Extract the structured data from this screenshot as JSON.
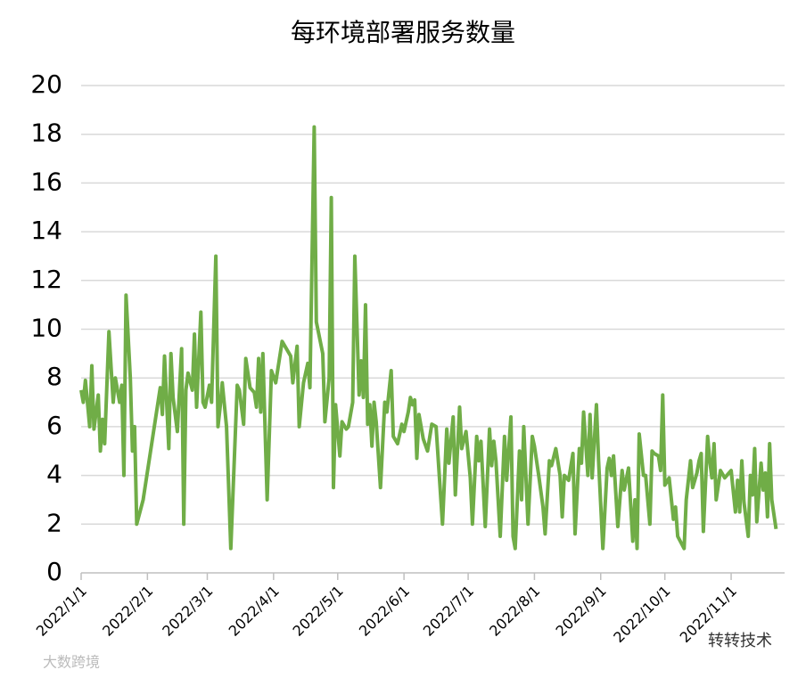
{
  "chart_data": {
    "type": "line",
    "title": "每环境部署服务数量",
    "color": "#70ad47",
    "grid": true,
    "xlim": [
      "2022/1/1",
      "2022/11/26"
    ],
    "xticks": [
      "2022/1/1",
      "2022/2/1",
      "2022/3/1",
      "2022/4/1",
      "2022/5/1",
      "2022/6/1",
      "2022/7/1",
      "2022/8/1",
      "2022/9/1",
      "2022/10/1",
      "2022/11/1"
    ],
    "ylim": [
      0,
      20
    ],
    "yticks": [
      0,
      2,
      4,
      6,
      8,
      10,
      12,
      14,
      16,
      18,
      20
    ],
    "x": [
      "2022/1/1",
      "2022/1/2",
      "2022/1/3",
      "2022/1/5",
      "2022/1/6",
      "2022/1/7",
      "2022/1/9",
      "2022/1/10",
      "2022/1/11",
      "2022/1/12",
      "2022/1/14",
      "2022/1/16",
      "2022/1/17",
      "2022/1/19",
      "2022/1/20",
      "2022/1/21",
      "2022/1/22",
      "2022/1/24",
      "2022/1/25",
      "2022/1/26",
      "2022/1/27",
      "2022/1/30",
      "2022/2/7",
      "2022/2/8",
      "2022/2/9",
      "2022/2/11",
      "2022/2/12",
      "2022/2/13",
      "2022/2/15",
      "2022/2/17",
      "2022/2/18",
      "2022/2/19",
      "2022/2/20",
      "2022/2/22",
      "2022/2/23",
      "2022/2/24",
      "2022/2/26",
      "2022/2/27",
      "2022/2/28",
      "2022/3/2",
      "2022/3/3",
      "2022/3/5",
      "2022/3/6",
      "2022/3/7",
      "2022/3/8",
      "2022/3/10",
      "2022/3/12",
      "2022/3/15",
      "2022/3/16",
      "2022/3/18",
      "2022/3/19",
      "2022/3/21",
      "2022/3/23",
      "2022/3/24",
      "2022/3/25",
      "2022/3/26",
      "2022/3/27",
      "2022/3/29",
      "2022/3/31",
      "2022/4/2",
      "2022/4/5",
      "2022/4/9",
      "2022/4/10",
      "2022/4/12",
      "2022/4/13",
      "2022/4/15",
      "2022/4/17",
      "2022/4/18",
      "2022/4/20",
      "2022/4/21",
      "2022/4/24",
      "2022/4/25",
      "2022/4/27",
      "2022/4/28",
      "2022/4/29",
      "2022/4/30",
      "2022/5/2",
      "2022/5/3",
      "2022/5/5",
      "2022/5/6",
      "2022/5/8",
      "2022/5/9",
      "2022/5/11",
      "2022/5/12",
      "2022/5/13",
      "2022/5/14",
      "2022/5/15",
      "2022/5/16",
      "2022/5/17",
      "2022/5/18",
      "2022/5/19",
      "2022/5/21",
      "2022/5/23",
      "2022/5/24",
      "2022/5/26",
      "2022/5/27",
      "2022/5/29",
      "2022/5/31",
      "2022/6/1",
      "2022/6/3",
      "2022/6/4",
      "2022/6/5",
      "2022/6/6",
      "2022/6/7",
      "2022/6/8",
      "2022/6/10",
      "2022/6/12",
      "2022/6/14",
      "2022/6/16",
      "2022/6/19",
      "2022/6/21",
      "2022/6/22",
      "2022/6/24",
      "2022/6/25",
      "2022/6/27",
      "2022/6/28",
      "2022/6/30",
      "2022/7/2",
      "2022/7/3",
      "2022/7/5",
      "2022/7/6",
      "2022/7/7",
      "2022/7/9",
      "2022/7/11",
      "2022/7/12",
      "2022/7/13",
      "2022/7/14",
      "2022/7/16",
      "2022/7/18",
      "2022/7/19",
      "2022/7/21",
      "2022/7/22",
      "2022/7/23",
      "2022/7/25",
      "2022/7/26",
      "2022/7/27",
      "2022/7/29",
      "2022/7/31",
      "2022/8/1",
      "2022/8/3",
      "2022/8/5",
      "2022/8/6",
      "2022/8/8",
      "2022/8/9",
      "2022/8/11",
      "2022/8/13",
      "2022/8/14",
      "2022/8/15",
      "2022/8/17",
      "2022/8/19",
      "2022/8/20",
      "2022/8/22",
      "2022/8/23",
      "2022/8/24",
      "2022/8/26",
      "2022/8/27",
      "2022/8/28",
      "2022/8/30",
      "2022/8/31",
      "2022/9/2",
      "2022/9/4",
      "2022/9/5",
      "2022/9/6",
      "2022/9/7",
      "2022/9/9",
      "2022/9/11",
      "2022/9/12",
      "2022/9/14",
      "2022/9/16",
      "2022/9/17",
      "2022/9/18",
      "2022/9/19",
      "2022/9/21",
      "2022/9/22",
      "2022/9/24",
      "2022/9/25",
      "2022/9/26",
      "2022/9/28",
      "2022/9/29",
      "2022/9/30",
      "2022/10/1",
      "2022/10/3",
      "2022/10/5",
      "2022/10/6",
      "2022/10/7",
      "2022/10/10",
      "2022/10/11",
      "2022/10/13",
      "2022/10/14",
      "2022/10/16",
      "2022/10/17",
      "2022/10/18",
      "2022/10/19",
      "2022/10/21",
      "2022/10/22",
      "2022/10/23",
      "2022/10/24",
      "2022/10/25",
      "2022/10/27",
      "2022/10/29",
      "2022/11/1",
      "2022/11/3",
      "2022/11/4",
      "2022/11/5",
      "2022/11/6",
      "2022/11/7",
      "2022/11/9",
      "2022/11/10",
      "2022/11/11",
      "2022/11/12",
      "2022/11/13",
      "2022/11/15",
      "2022/11/16",
      "2022/11/17",
      "2022/11/18",
      "2022/11/19",
      "2022/11/20",
      "2022/11/22"
    ],
    "values": [
      7.5,
      7.0,
      7.9,
      6.0,
      8.5,
      5.9,
      7.3,
      5.0,
      6.3,
      5.3,
      9.9,
      7.0,
      8.0,
      7.0,
      7.7,
      4.0,
      11.4,
      8.0,
      5.0,
      6.0,
      2.0,
      3.0,
      7.6,
      6.5,
      8.9,
      5.1,
      9.0,
      7.2,
      5.8,
      9.2,
      2.0,
      7.5,
      8.2,
      7.5,
      9.8,
      6.8,
      10.7,
      7.0,
      6.8,
      7.7,
      7.0,
      13.0,
      6.0,
      6.8,
      7.8,
      6.0,
      1.0,
      7.7,
      7.5,
      6.1,
      8.8,
      7.6,
      7.4,
      6.8,
      8.8,
      6.6,
      9.0,
      3.0,
      8.3,
      7.8,
      9.5,
      8.9,
      7.8,
      9.3,
      6.0,
      7.8,
      8.6,
      7.6,
      18.3,
      10.3,
      9.0,
      6.2,
      8.0,
      15.4,
      3.5,
      6.9,
      4.8,
      6.2,
      5.9,
      6.0,
      7.0,
      13.0,
      7.3,
      8.7,
      7.2,
      11.0,
      6.1,
      6.9,
      5.2,
      7.0,
      6.2,
      3.5,
      7.0,
      6.6,
      8.3,
      5.6,
      5.3,
      6.1,
      5.8,
      6.6,
      7.2,
      6.9,
      7.1,
      4.7,
      6.5,
      5.5,
      5.0,
      6.1,
      6.0,
      2.0,
      5.9,
      4.5,
      6.4,
      3.2,
      6.8,
      5.1,
      5.8,
      3.9,
      2.0,
      5.6,
      4.6,
      5.4,
      1.9,
      5.9,
      4.4,
      5.4,
      4.6,
      1.5,
      5.6,
      3.8,
      6.4,
      1.5,
      1.0,
      5.0,
      3.0,
      6.0,
      2.0,
      5.6,
      5.2,
      4.0,
      2.7,
      1.6,
      4.6,
      4.4,
      5.1,
      4.0,
      2.3,
      4.0,
      3.8,
      4.9,
      1.6,
      5.1,
      4.5,
      6.6,
      4.0,
      6.5,
      3.9,
      6.9,
      4.6,
      1.0,
      4.3,
      4.7,
      4.0,
      4.8,
      1.9,
      4.2,
      3.4,
      4.3,
      1.3,
      3.0,
      1.0,
      5.7,
      4.0,
      4.0,
      2.0,
      5.0,
      4.9,
      4.8,
      4.2,
      7.3,
      3.6,
      3.9,
      2.2,
      2.7,
      1.5,
      1.0,
      3.0,
      4.6,
      3.5,
      4.1,
      4.6,
      4.9,
      1.7,
      5.6,
      4.6,
      3.9,
      5.3,
      3.0,
      4.2,
      3.9,
      4.2,
      2.5,
      3.8,
      2.5,
      4.6,
      2.9,
      1.5,
      4.0,
      3.2,
      5.1,
      2.1,
      4.5,
      3.4,
      4.1,
      2.3,
      5.3,
      3.0,
      1.8
    ],
    "watermarks": [
      "转转技术",
      "大数跨境"
    ]
  }
}
